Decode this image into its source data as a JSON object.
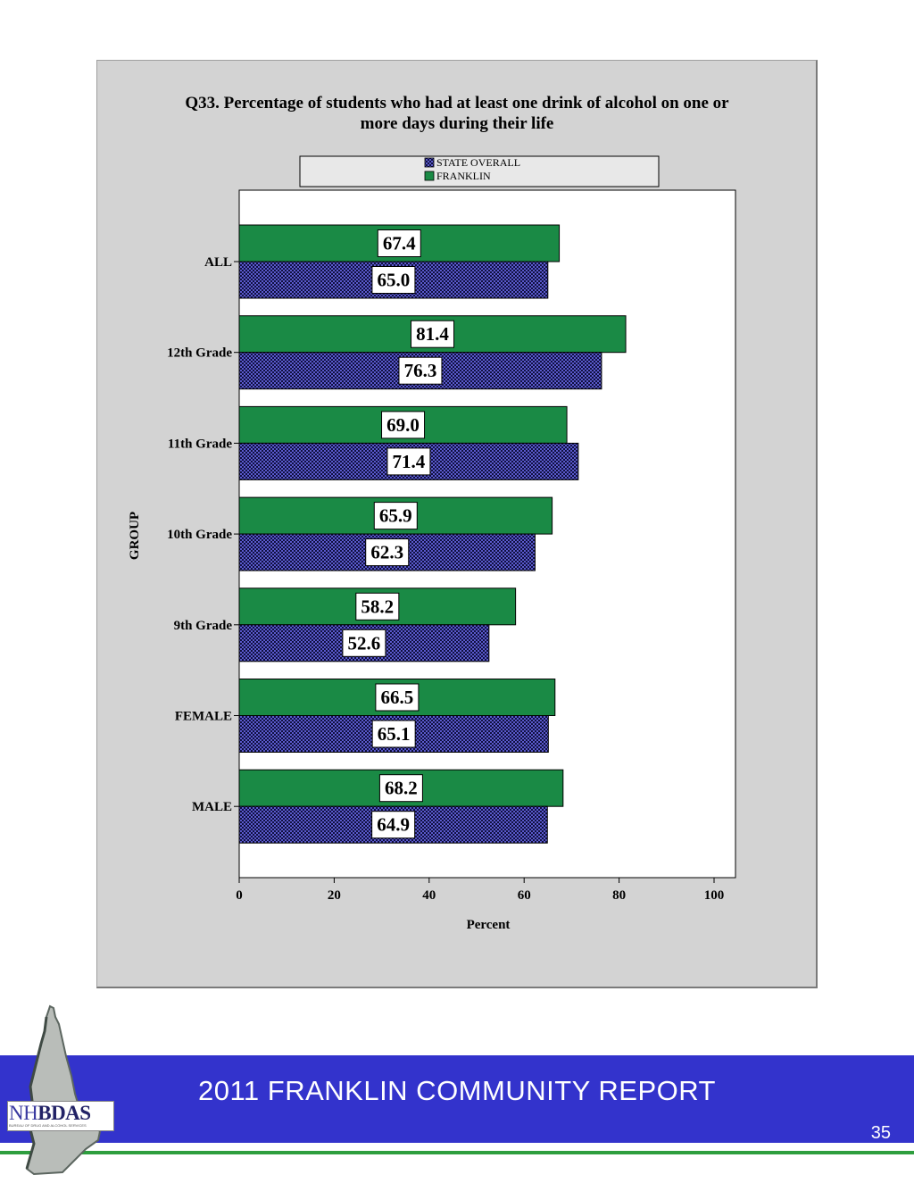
{
  "chart_data": {
    "type": "bar",
    "orientation": "horizontal",
    "title": "Q33. Percentage of students who had at least one drink of alcohol on one or more days during their life",
    "title_lines": [
      "Q33. Percentage of students who had at least one drink of alcohol on one or",
      "more days during their life"
    ],
    "xlabel": "Percent",
    "ylabel": "GROUP",
    "xlim": [
      0,
      100
    ],
    "xticks": [
      "0",
      "20",
      "40",
      "60",
      "80",
      "100"
    ],
    "grid": false,
    "legend_position": "top",
    "categories": [
      "ALL",
      "12th Grade",
      "11th Grade",
      "10th Grade",
      "9th Grade",
      "FEMALE",
      "MALE"
    ],
    "series": [
      {
        "name": "STATE OVERALL",
        "color": "#1a1a5e",
        "pattern": "checkerboard",
        "values": [
          65.0,
          76.3,
          71.4,
          62.3,
          52.6,
          65.1,
          64.9
        ],
        "labels": [
          "65.0",
          "76.3",
          "71.4",
          "62.3",
          "52.6",
          "65.1",
          "64.9"
        ]
      },
      {
        "name": "FRANKLIN",
        "color": "#1a8a45",
        "pattern": "solid",
        "values": [
          67.4,
          81.4,
          69.0,
          65.9,
          58.2,
          66.5,
          68.2
        ],
        "labels": [
          "67.4",
          "81.4",
          "69.0",
          "65.9",
          "58.2",
          "66.5",
          "68.2"
        ]
      }
    ]
  },
  "footer": {
    "title": "2011 FRANKLIN COMMUNITY REPORT",
    "page_number": "35",
    "band_color": "#3333cc",
    "line_color": "#2e9e3e"
  },
  "logo": {
    "text_regular": "NH",
    "text_bold": "BDAS",
    "subtitle": "BUREAU OF DRUG AND ALCOHOL SERVICES"
  }
}
